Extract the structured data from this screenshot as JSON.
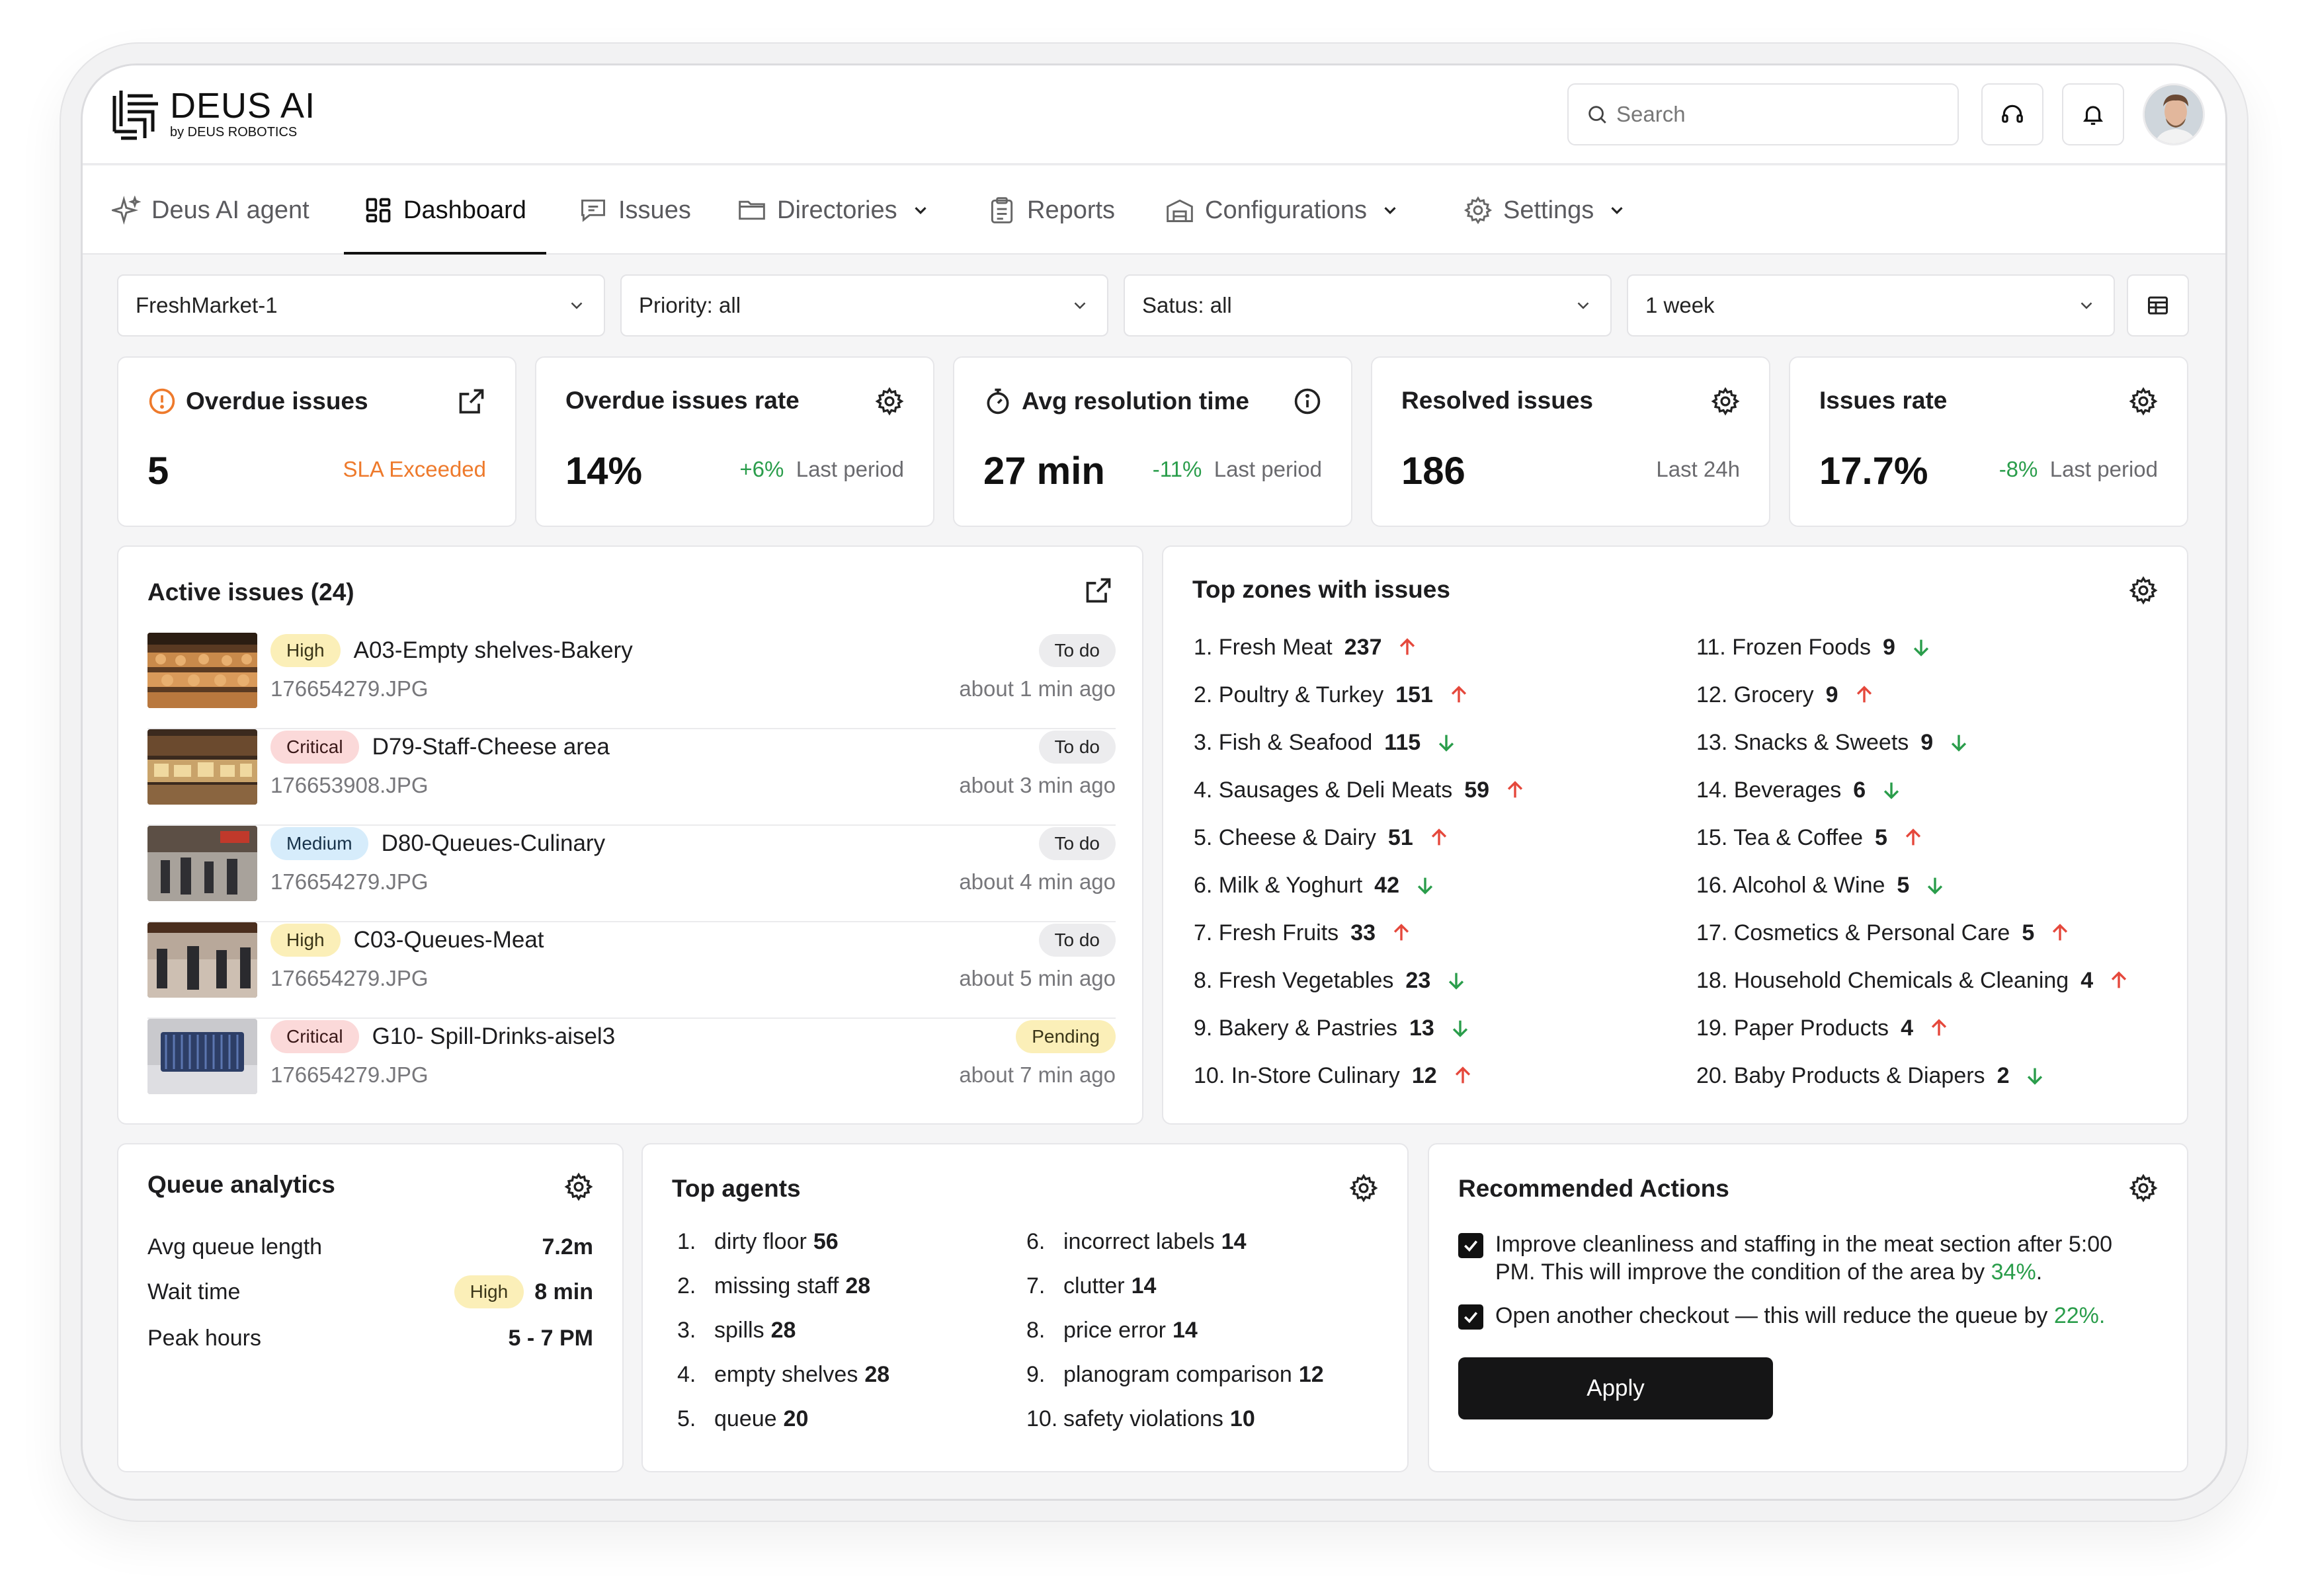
{
  "header": {
    "logo_title": "DEUS AI",
    "logo_sub": "by DEUS ROBOTICS",
    "search_placeholder": "Search"
  },
  "nav": [
    {
      "label": "Deus AI agent",
      "icon": "sparkle-icon"
    },
    {
      "label": "Dashboard",
      "icon": "dashboard-icon",
      "active": true
    },
    {
      "label": "Issues",
      "icon": "message-icon"
    },
    {
      "label": "Directories",
      "icon": "folder-icon",
      "dropdown": true
    },
    {
      "label": "Reports",
      "icon": "clipboard-icon"
    },
    {
      "label": "Configurations",
      "icon": "warehouse-icon",
      "dropdown": true
    },
    {
      "label": "Settings",
      "icon": "gear-icon",
      "dropdown": true
    }
  ],
  "filters": {
    "store": "FreshMarket-1",
    "priority": "Priority: all",
    "status": "Satus: all",
    "period": "1 week"
  },
  "kpis": {
    "overdue": {
      "title": "Overdue issues",
      "value": "5",
      "side": "SLA Exceeded"
    },
    "overdue_rate": {
      "title": "Overdue issues rate",
      "value": "14%",
      "delta": "+6%",
      "side": "Last period"
    },
    "avg_resolution": {
      "title": "Avg resolution time",
      "value": "27 min",
      "delta": "-11%",
      "side": "Last period"
    },
    "resolved": {
      "title": "Resolved issues",
      "value": "186",
      "side": "Last 24h"
    },
    "issues_rate": {
      "title": "Issues rate",
      "value": "17.7%",
      "delta": "-8%",
      "side": "Last period"
    }
  },
  "active_issues": {
    "title": "Active issues (24)",
    "items": [
      {
        "priority": "High",
        "name": "A03-Empty shelves-Bakery",
        "file": "176654279.JPG",
        "status": "To do",
        "time": "about 1 min ago"
      },
      {
        "priority": "Critical",
        "name": "D79-Staff-Cheese area",
        "file": "176653908.JPG",
        "status": "To do",
        "time": "about 3 min ago"
      },
      {
        "priority": "Medium",
        "name": "D80-Queues-Culinary",
        "file": "176654279.JPG",
        "status": "To do",
        "time": "about 4 min ago"
      },
      {
        "priority": "High",
        "name": "C03-Queues-Meat",
        "file": "176654279.JPG",
        "status": "To do",
        "time": "about 5 min ago"
      },
      {
        "priority": "Critical",
        "name": "G10- Spill-Drinks-aisel3",
        "file": "176654279.JPG",
        "status": "Pending",
        "time": "about 7 min ago"
      }
    ]
  },
  "top_zones": {
    "title": "Top zones with issues",
    "items": [
      {
        "label": "1. Fresh Meat",
        "count": "237",
        "trend": "up"
      },
      {
        "label": "2. Poultry & Turkey",
        "count": "151",
        "trend": "up"
      },
      {
        "label": "3. Fish & Seafood",
        "count": "115",
        "trend": "down"
      },
      {
        "label": "4. Sausages & Deli Meats",
        "count": "59",
        "trend": "up"
      },
      {
        "label": "5. Cheese & Dairy",
        "count": "51",
        "trend": "up"
      },
      {
        "label": "6. Milk & Yoghurt",
        "count": "42",
        "trend": "down"
      },
      {
        "label": "7. Fresh Fruits",
        "count": "33",
        "trend": "up"
      },
      {
        "label": "8. Fresh Vegetables",
        "count": "23",
        "trend": "down"
      },
      {
        "label": "9. Bakery & Pastries",
        "count": "13",
        "trend": "down"
      },
      {
        "label": "10. In-Store Culinary",
        "count": "12",
        "trend": "up"
      },
      {
        "label": "11. Frozen Foods",
        "count": "9",
        "trend": "down"
      },
      {
        "label": "12. Grocery",
        "count": "9",
        "trend": "up"
      },
      {
        "label": "13. Snacks & Sweets",
        "count": "9",
        "trend": "down"
      },
      {
        "label": "14. Beverages",
        "count": "6",
        "trend": "down"
      },
      {
        "label": "15. Tea & Coffee",
        "count": "5",
        "trend": "up"
      },
      {
        "label": "16. Alcohol & Wine",
        "count": "5",
        "trend": "down"
      },
      {
        "label": "17. Cosmetics & Personal Care",
        "count": "5",
        "trend": "up"
      },
      {
        "label": "18. Household Chemicals & Cleaning",
        "count": "4",
        "trend": "up"
      },
      {
        "label": "19. Paper Products",
        "count": "4",
        "trend": "up"
      },
      {
        "label": "20. Baby Products & Diapers",
        "count": "2",
        "trend": "down"
      }
    ]
  },
  "queue": {
    "title": "Queue analytics",
    "rows": [
      {
        "label": "Avg queue length",
        "value": "7.2m"
      },
      {
        "label": "Wait time",
        "badge": "High",
        "value": "8 min"
      },
      {
        "label": "Peak hours",
        "value": "5 - 7 PM"
      }
    ]
  },
  "agents": {
    "title": "Top agents",
    "items": [
      {
        "num": "1.",
        "label": "dirty floor",
        "count": "56"
      },
      {
        "num": "2.",
        "label": "missing staff",
        "count": "28"
      },
      {
        "num": "3.",
        "label": "spills",
        "count": "28"
      },
      {
        "num": "4.",
        "label": "empty shelves",
        "count": "28"
      },
      {
        "num": "5.",
        "label": "queue",
        "count": "20"
      },
      {
        "num": "6.",
        "label": "incorrect labels",
        "count": "14"
      },
      {
        "num": "7.",
        "label": "clutter",
        "count": "14"
      },
      {
        "num": "8.",
        "label": "price error",
        "count": "14"
      },
      {
        "num": "9.",
        "label": "planogram comparison",
        "count": "12"
      },
      {
        "num": "10.",
        "label": "safety violations",
        "count": "10"
      }
    ]
  },
  "recommended": {
    "title": "Recommended Actions",
    "items": [
      {
        "text": "Improve cleanliness and staffing in the meat section after 5:00 PM. This will improve the condition of the area by ",
        "highlight": "34%",
        "tail": ".",
        "checked": true
      },
      {
        "text": "Open another checkout — this will reduce the queue by ",
        "highlight": "22%.",
        "tail": "",
        "checked": true
      }
    ],
    "apply_label": "Apply"
  },
  "colors": {
    "accent_green": "#2a9d4b",
    "accent_red": "#e5483c",
    "accent_orange": "#ee7a2c",
    "dark": "#151516"
  }
}
